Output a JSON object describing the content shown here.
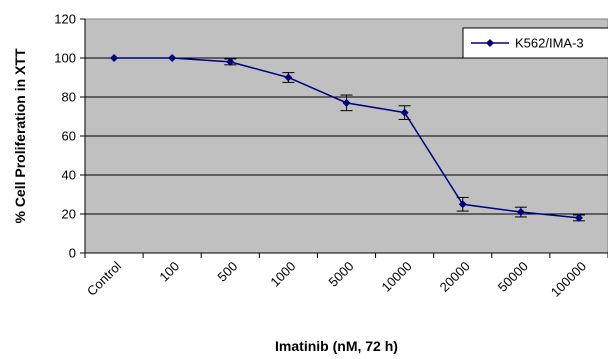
{
  "chart_data": {
    "type": "line",
    "title": "",
    "xlabel": "Imatinib (nM, 72 h)",
    "ylabel": "% Cell Proliferation in XTT",
    "categories": [
      "Control",
      "100",
      "500",
      "1000",
      "5000",
      "10000",
      "20000",
      "50000",
      "100000"
    ],
    "ylim": [
      0,
      120
    ],
    "yticks": [
      0,
      20,
      40,
      60,
      80,
      100,
      120
    ],
    "grid": true,
    "legend_position": "top-right",
    "series": [
      {
        "name": "K562/IMA-3",
        "values": [
          100,
          100,
          98,
          90,
          77,
          72,
          25,
          21,
          18
        ],
        "errors": [
          0,
          0,
          1.5,
          2.5,
          4,
          3.5,
          3.5,
          2.5,
          1.5
        ]
      }
    ],
    "colors": {
      "plot_background": "#c0c0c0",
      "series_line": "#000080",
      "grid": "#000000"
    }
  }
}
